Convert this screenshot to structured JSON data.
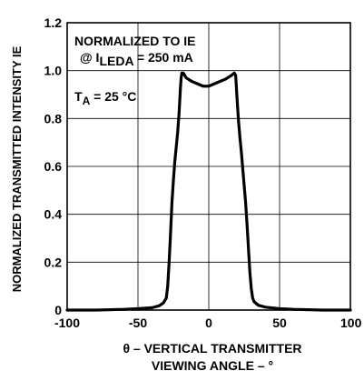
{
  "chart_data": {
    "type": "line",
    "title": "",
    "xlabel": [
      "θ – VERTICAL TRANSMITTER",
      "VIEWING ANGLE – °"
    ],
    "ylabel": "NORMALIZED TRANSMITTED INTENSITY IE",
    "xlim": [
      -100,
      100
    ],
    "ylim": [
      0,
      1.2
    ],
    "xticks": [
      "-100",
      "-50",
      "0",
      "50",
      "100"
    ],
    "yticks": [
      "0",
      "0.2",
      "0.4",
      "0.6",
      "0.8",
      "1.0",
      "1.2"
    ],
    "grid": true,
    "legend": "none",
    "annotations": {
      "normalized": "NORMALIZED TO IE",
      "current_prefix": "@ I",
      "current_sub": "LEDA",
      "current_suffix": " = 250 mA",
      "temp_prefix": "T",
      "temp_sub": "A",
      "temp_suffix": " = 25 °C"
    },
    "series": [
      {
        "color": "#000000",
        "x": [
          -100,
          -80,
          -60,
          -50,
          -40,
          -35,
          -32,
          -30,
          -29,
          -28,
          -27,
          -26,
          -25,
          -24,
          -23,
          -22,
          -21,
          -20,
          -19.5,
          -19,
          -18,
          -16,
          -12,
          -8,
          -4,
          0,
          4,
          8,
          12,
          16,
          18,
          19,
          19.5,
          20,
          21,
          22,
          23,
          24,
          25,
          26,
          27,
          28,
          29,
          30,
          31,
          32,
          35,
          40,
          50,
          60,
          80,
          100
        ],
        "y": [
          0.0,
          0.0,
          0.003,
          0.006,
          0.01,
          0.018,
          0.03,
          0.05,
          0.1,
          0.2,
          0.32,
          0.45,
          0.54,
          0.62,
          0.68,
          0.74,
          0.82,
          0.93,
          0.97,
          0.99,
          0.99,
          0.97,
          0.955,
          0.945,
          0.935,
          0.935,
          0.945,
          0.955,
          0.965,
          0.98,
          0.99,
          0.98,
          0.93,
          0.88,
          0.79,
          0.72,
          0.66,
          0.59,
          0.52,
          0.45,
          0.36,
          0.26,
          0.16,
          0.09,
          0.05,
          0.035,
          0.02,
          0.012,
          0.006,
          0.003,
          0.0,
          0.0
        ]
      }
    ]
  }
}
